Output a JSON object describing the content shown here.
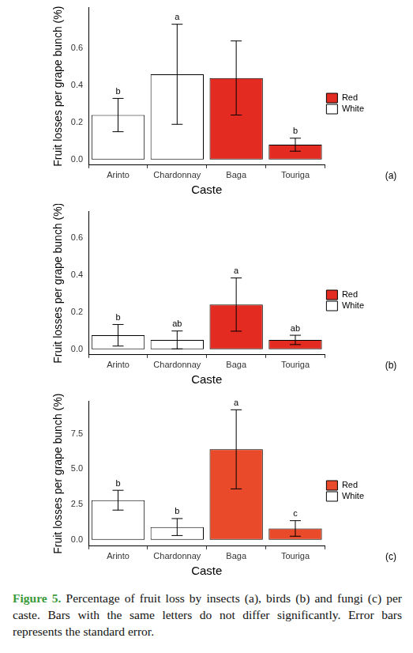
{
  "chart_data": [
    {
      "type": "bar",
      "panel_label": "(a)",
      "x_label": "Caste",
      "y_label": "Fruit losses per grape bunch (%)",
      "categories": [
        "Arinto",
        "Chardonnay",
        "Baga",
        "Touriga"
      ],
      "values": [
        0.24,
        0.46,
        0.44,
        0.08
      ],
      "errors": [
        0.09,
        0.27,
        0.2,
        0.035
      ],
      "letters": [
        "b",
        "a",
        null,
        "b"
      ],
      "colors": [
        "#ffffff",
        "#ffffff",
        "#e32b22",
        "#e32b22"
      ],
      "legend": "right",
      "legend_items": [
        {
          "name": "Red",
          "color": "#e32b22"
        },
        {
          "name": "White",
          "color": "#ffffff"
        }
      ],
      "ylim": [
        -0.03,
        0.82
      ],
      "yticks": [
        {
          "value": 0,
          "label": "0.0"
        },
        {
          "value": 0.2,
          "label": "0.2"
        },
        {
          "value": 0.4,
          "label": "0.4"
        },
        {
          "value": 0.6,
          "label": "0.6"
        }
      ],
      "grid": false
    },
    {
      "type": "bar",
      "panel_label": "(b)",
      "x_label": "Caste",
      "y_label": "Fruit losses per grape bunch (%)",
      "categories": [
        "Arinto",
        "Chardonnay",
        "Baga",
        "Touriga"
      ],
      "values": [
        0.075,
        0.05,
        0.24,
        0.05
      ],
      "errors": [
        0.058,
        0.048,
        0.143,
        0.025
      ],
      "letters": [
        "b",
        "ab",
        "a",
        "ab"
      ],
      "colors": [
        "#ffffff",
        "#ffffff",
        "#e32b22",
        "#e32b22"
      ],
      "legend": "right",
      "legend_items": [
        {
          "name": "Red",
          "color": "#e32b22"
        },
        {
          "name": "White",
          "color": "#ffffff"
        }
      ],
      "ylim": [
        -0.03,
        0.74
      ],
      "yticks": [
        {
          "value": 0,
          "label": "0.0"
        },
        {
          "value": 0.2,
          "label": "0.2"
        },
        {
          "value": 0.4,
          "label": "0.4"
        },
        {
          "value": 0.6,
          "label": "0.6"
        }
      ],
      "grid": false
    },
    {
      "type": "bar",
      "panel_label": "(c)",
      "x_label": "Caste",
      "y_label": "Fruit losses per grape bunch (%)",
      "categories": [
        "Arinto",
        "Chardonnay",
        "Baga",
        "Touriga"
      ],
      "values": [
        2.8,
        0.9,
        6.4,
        0.8
      ],
      "errors": [
        0.7,
        0.6,
        2.8,
        0.55
      ],
      "letters": [
        "b",
        "b",
        "a",
        "c"
      ],
      "colors": [
        "#ffffff",
        "#ffffff",
        "#e84a2a",
        "#e84a2a"
      ],
      "legend": "right",
      "legend_items": [
        {
          "name": "Red",
          "color": "#e84a2a"
        },
        {
          "name": "White",
          "color": "#ffffff"
        }
      ],
      "ylim": [
        -0.45,
        9.8
      ],
      "yticks": [
        {
          "value": 0,
          "label": "0.0"
        },
        {
          "value": 2.5,
          "label": "2.5"
        },
        {
          "value": 5,
          "label": "5.0"
        },
        {
          "value": 7.5,
          "label": "7.5"
        }
      ],
      "grid": false
    }
  ],
  "caption": {
    "label": "Figure 5.",
    "text": "Percentage of fruit loss by insects (a), birds (b) and fungi (c) per caste. Bars with the same letters do not differ significantly. Error bars represents the standard error."
  }
}
